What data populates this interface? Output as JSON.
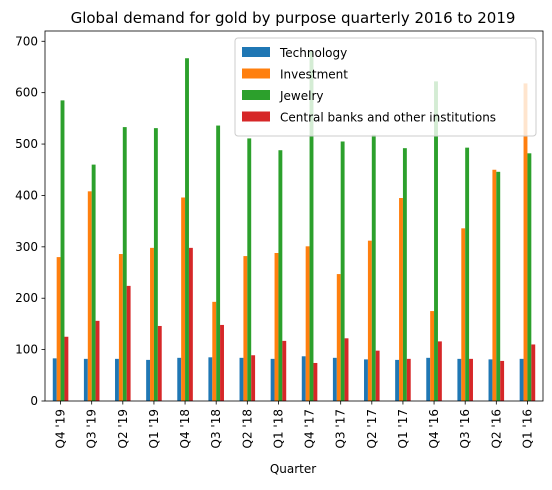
{
  "chart_data": {
    "type": "bar",
    "title": "Global demand for gold by purpose quarterly 2016 to 2019",
    "xlabel": "Quarter",
    "ylabel": "",
    "ylim": [
      0,
      720
    ],
    "yticks": [
      0,
      100,
      200,
      300,
      400,
      500,
      600,
      700
    ],
    "grid": false,
    "legend_position": "top-right",
    "categories": [
      "Q4 '19",
      "Q3 '19",
      "Q2 '19",
      "Q1 '19",
      "Q4 '18",
      "Q3 '18",
      "Q2 '18",
      "Q1 '18",
      "Q4 '17",
      "Q3 '17",
      "Q2 '17",
      "Q1 '17",
      "Q4 '16",
      "Q3 '16",
      "Q2 '16",
      "Q1 '16"
    ],
    "series": [
      {
        "name": "Technology",
        "color": "#1f77b4",
        "values": [
          83,
          82,
          82,
          80,
          84,
          85,
          84,
          82,
          87,
          84,
          81,
          80,
          84,
          82,
          81,
          82
        ]
      },
      {
        "name": "Investment",
        "color": "#ff7f0e",
        "values": [
          280,
          408,
          286,
          298,
          396,
          193,
          282,
          288,
          301,
          247,
          312,
          395,
          175,
          336,
          450,
          618
        ]
      },
      {
        "name": "Jewelry",
        "color": "#2ca02c",
        "values": [
          585,
          460,
          533,
          531,
          667,
          536,
          511,
          488,
          681,
          505,
          518,
          492,
          622,
          493,
          446,
          482
        ]
      },
      {
        "name": "Central banks and other institutions",
        "color": "#d62728",
        "values": [
          125,
          156,
          224,
          146,
          298,
          148,
          89,
          117,
          74,
          122,
          98,
          82,
          116,
          82,
          78,
          110
        ]
      }
    ]
  }
}
